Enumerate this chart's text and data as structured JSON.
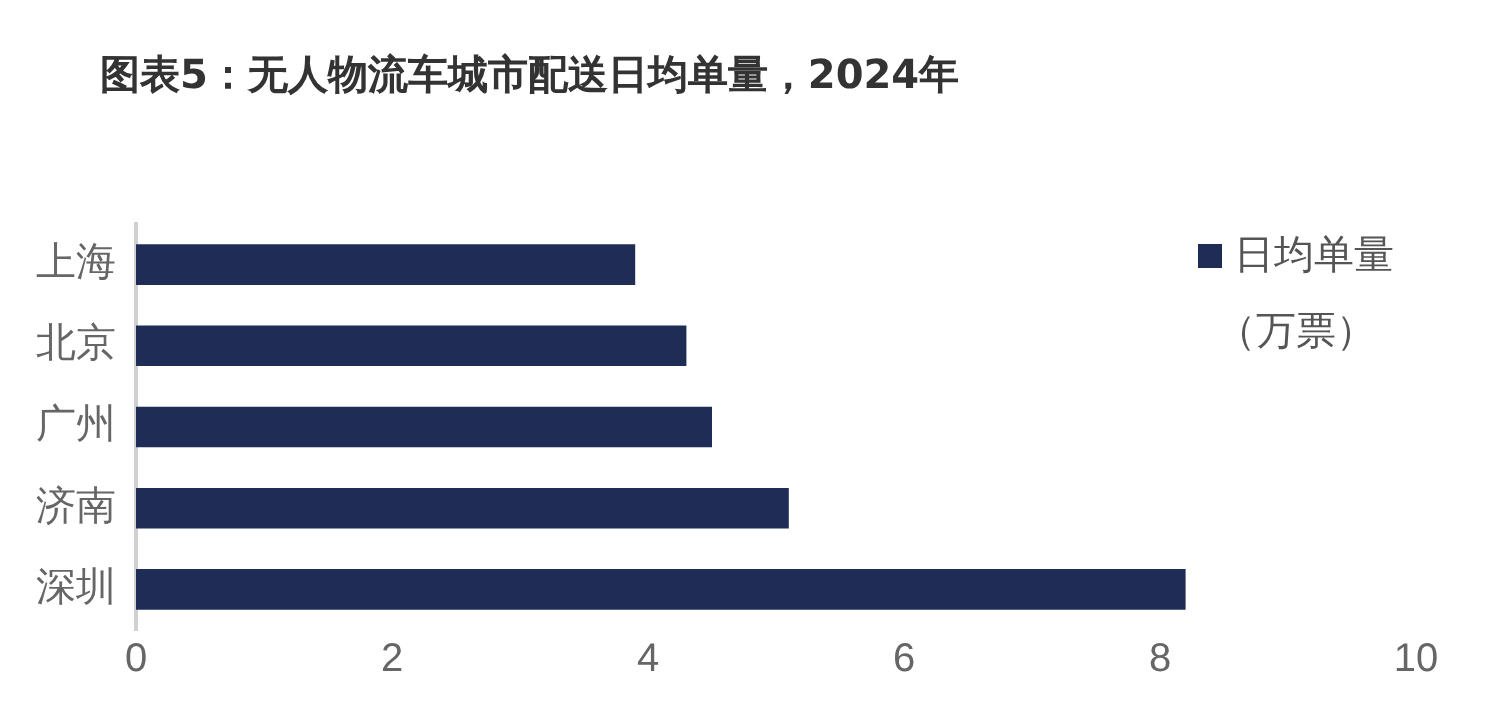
{
  "chart_data": {
    "type": "bar",
    "orientation": "horizontal",
    "title": "图表5：无人物流车城市配送日均单量，2024年",
    "categories": [
      "上海",
      "北京",
      "广州",
      "济南",
      "深圳"
    ],
    "series": [
      {
        "name": "日均单量（万票）",
        "color": "#1f2d56",
        "values": [
          3.9,
          4.3,
          4.5,
          5.1,
          8.2
        ]
      }
    ],
    "xlim": [
      0,
      10
    ],
    "xticks": [
      0,
      2,
      4,
      6,
      8,
      10
    ],
    "grid": false,
    "legend": "top right"
  }
}
